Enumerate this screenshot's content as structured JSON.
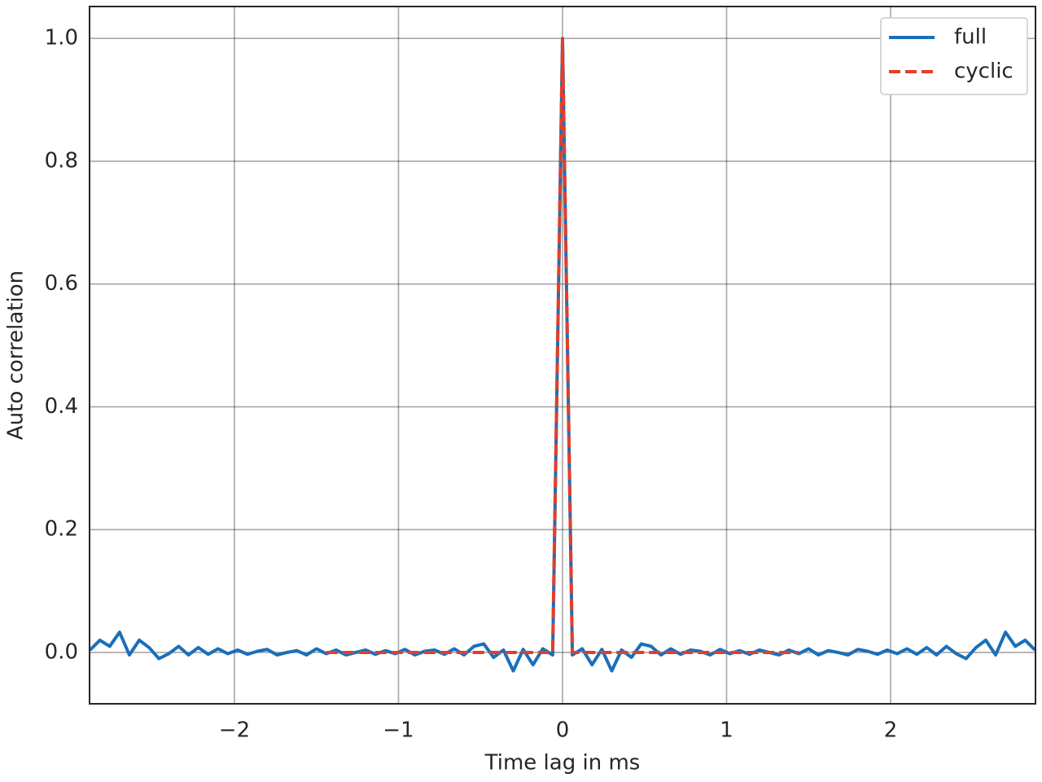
{
  "chart_data": {
    "type": "line",
    "xlabel": "Time lag in ms",
    "ylabel": "Auto correlation",
    "x": [
      -2.88,
      -2.82,
      -2.76,
      -2.7,
      -2.64,
      -2.58,
      -2.52,
      -2.46,
      -2.4,
      -2.34,
      -2.28,
      -2.22,
      -2.16,
      -2.1,
      -2.04,
      -1.98,
      -1.92,
      -1.86,
      -1.8,
      -1.74,
      -1.68,
      -1.62,
      -1.56,
      -1.5,
      -1.44,
      -1.38,
      -1.32,
      -1.26,
      -1.2,
      -1.14,
      -1.08,
      -1.02,
      -0.96,
      -0.9,
      -0.84,
      -0.78,
      -0.72,
      -0.66,
      -0.6,
      -0.54,
      -0.48,
      -0.42,
      -0.36,
      -0.3,
      -0.24,
      -0.18,
      -0.12,
      -0.06,
      0,
      0.06,
      0.12,
      0.18,
      0.24,
      0.3,
      0.36,
      0.42,
      0.48,
      0.54,
      0.6,
      0.66,
      0.72,
      0.78,
      0.84,
      0.9,
      0.96,
      1.02,
      1.08,
      1.14,
      1.2,
      1.26,
      1.32,
      1.38,
      1.44,
      1.5,
      1.56,
      1.62,
      1.68,
      1.74,
      1.8,
      1.86,
      1.92,
      1.98,
      2.04,
      2.1,
      2.16,
      2.22,
      2.28,
      2.34,
      2.4,
      2.46,
      2.52,
      2.58,
      2.64,
      2.7,
      2.76,
      2.82,
      2.88
    ],
    "series": [
      {
        "name": "full",
        "color": "#1a6fba",
        "linestyle": "solid",
        "values": [
          0.004,
          0.02,
          0.01,
          0.033,
          -0.004,
          0.02,
          0.008,
          -0.01,
          -0.002,
          0.01,
          -0.004,
          0.008,
          -0.003,
          0.006,
          -0.002,
          0.004,
          -0.003,
          0.002,
          0.005,
          -0.004,
          0.0,
          0.003,
          -0.004,
          0.006,
          -0.002,
          0.004,
          -0.004,
          0.0,
          0.004,
          -0.003,
          0.003,
          -0.002,
          0.005,
          -0.004,
          0.002,
          0.004,
          -0.003,
          0.006,
          -0.004,
          0.01,
          0.014,
          -0.008,
          0.004,
          -0.03,
          0.005,
          -0.02,
          0.006,
          -0.004,
          1.0,
          -0.004,
          0.006,
          -0.02,
          0.005,
          -0.03,
          0.004,
          -0.008,
          0.014,
          0.01,
          -0.004,
          0.006,
          -0.003,
          0.004,
          0.002,
          -0.004,
          0.005,
          -0.002,
          0.003,
          -0.003,
          0.004,
          0.0,
          -0.004,
          0.004,
          -0.002,
          0.006,
          -0.004,
          0.003,
          0.0,
          -0.004,
          0.005,
          0.002,
          -0.003,
          0.004,
          -0.002,
          0.006,
          -0.003,
          0.008,
          -0.004,
          0.01,
          -0.002,
          -0.01,
          0.008,
          0.02,
          -0.004,
          0.033,
          0.01,
          0.02,
          0.004
        ]
      },
      {
        "name": "cyclic",
        "color": "#e0402a",
        "linestyle": "dashed",
        "values": [
          null,
          null,
          null,
          null,
          null,
          null,
          null,
          null,
          null,
          null,
          null,
          null,
          null,
          null,
          null,
          null,
          null,
          null,
          null,
          null,
          null,
          null,
          null,
          null,
          0,
          0,
          0,
          0,
          0,
          0,
          0,
          0,
          0,
          0,
          0,
          0,
          0,
          0,
          0,
          0,
          0,
          0,
          0,
          0,
          0,
          0,
          0,
          0,
          1.0,
          0,
          0,
          0,
          0,
          0,
          0,
          0,
          0,
          0,
          0,
          0,
          0,
          0,
          0,
          0,
          0,
          0,
          0,
          0,
          0,
          0,
          0,
          0,
          0,
          null,
          null,
          null,
          null,
          null,
          null,
          null,
          null,
          null,
          null,
          null,
          null,
          null,
          null,
          null,
          null,
          null,
          null,
          null,
          null,
          null,
          null,
          null,
          null
        ]
      }
    ],
    "xlim": [
      -2.883,
      2.883
    ],
    "ylim": [
      -0.0836,
      1.052
    ],
    "xticks": [
      {
        "value": -2,
        "label": "−2"
      },
      {
        "value": -1,
        "label": "−1"
      },
      0,
      1,
      2
    ],
    "yticks": [
      {
        "value": 0,
        "label": "0.0"
      },
      0.2,
      0.4,
      0.6,
      0.8,
      {
        "value": 1,
        "label": "1.0"
      }
    ],
    "grid": true,
    "legend": "upper right"
  }
}
